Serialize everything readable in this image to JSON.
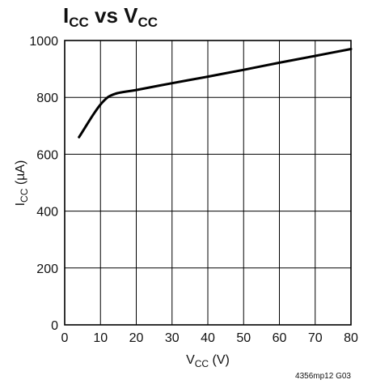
{
  "chart_data": {
    "type": "line",
    "title": {
      "main": "I",
      "sub": "CC",
      "middle": " vs V",
      "sub2": "CC"
    },
    "xlabel": {
      "main": "V",
      "sub": "CC",
      "rest": " (V)"
    },
    "ylabel": {
      "main": "I",
      "sub": "CC",
      "rest": " (µA)"
    },
    "xlim": [
      0,
      80
    ],
    "ylim": [
      0,
      1000
    ],
    "x_ticks": [
      0,
      10,
      20,
      30,
      40,
      50,
      60,
      70,
      80
    ],
    "y_ticks": [
      0,
      200,
      400,
      600,
      800,
      1000
    ],
    "grid": true,
    "series": [
      {
        "x": [
          4,
          6,
          8,
          10,
          12,
          14,
          16,
          20,
          30,
          40,
          50,
          60,
          70,
          80
        ],
        "y": [
          660,
          700,
          740,
          775,
          800,
          812,
          818,
          826,
          850,
          873,
          897,
          922,
          946,
          970
        ]
      }
    ],
    "footnote": "4356mp12 G03"
  }
}
